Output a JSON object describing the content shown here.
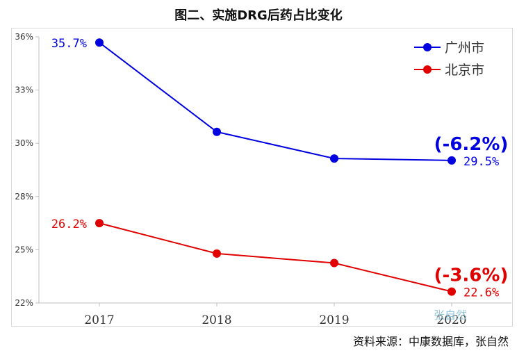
{
  "title": "图二、实施DRG后药占比变化",
  "source": "资料来源：中康数据库，张自然",
  "watermark": "张自然",
  "chart_data": {
    "type": "line",
    "categories": [
      "2017",
      "2018",
      "2019",
      "2020"
    ],
    "ylim": [
      22,
      36
    ],
    "yticks": [
      "22%",
      "25%",
      "28%",
      "30%",
      "33%",
      "36%"
    ],
    "yticks_values": [
      22,
      24.8,
      27.6,
      30.4,
      33.2,
      36
    ],
    "grid": false,
    "legend_position": "top-right",
    "series": [
      {
        "name": "广州市",
        "color": "#0000e0",
        "values": [
          35.7,
          31.0,
          29.6,
          29.5
        ],
        "labels": [
          "35.7%",
          "",
          "",
          "29.5%"
        ],
        "change": "(-6.2%)"
      },
      {
        "name": "北京市",
        "color": "#e00000",
        "values": [
          26.2,
          24.6,
          24.1,
          22.6
        ],
        "labels": [
          "26.2%",
          "",
          "",
          "22.6%"
        ],
        "change": "(-3.6%)"
      }
    ]
  }
}
